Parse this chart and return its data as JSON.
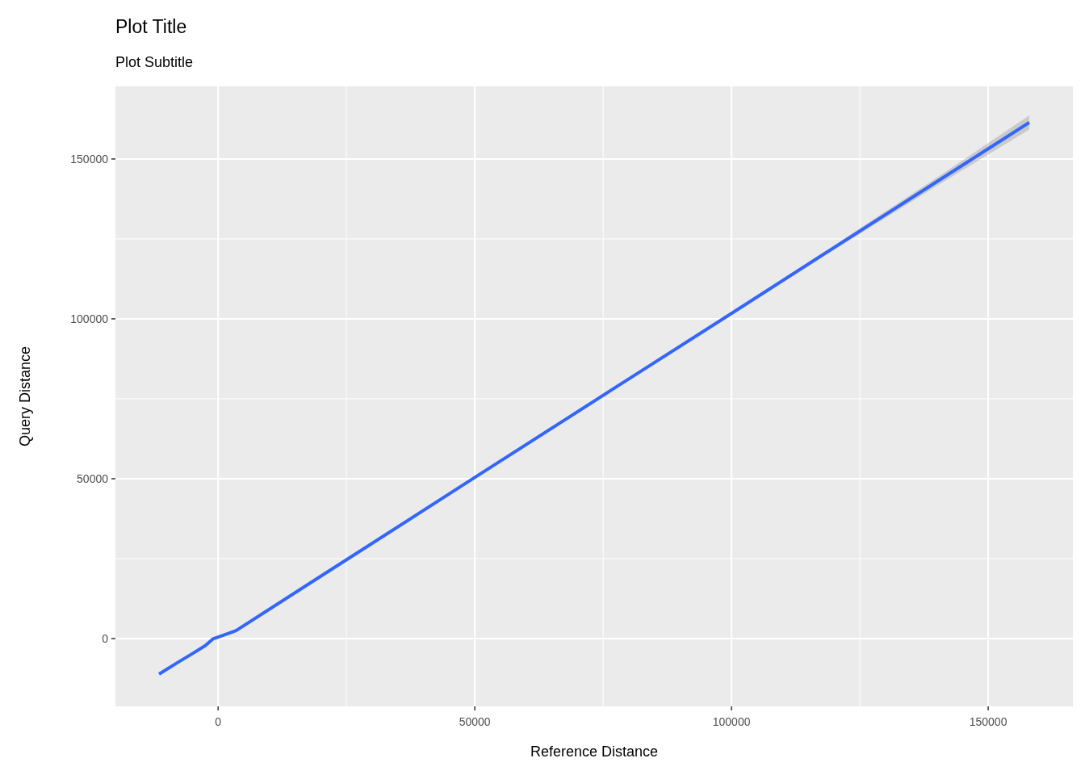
{
  "chart_data": {
    "type": "line",
    "title": "Plot Title",
    "subtitle": "Plot Subtitle",
    "xlabel": "Reference Distance",
    "ylabel": "Query Distance",
    "x": [
      -11500,
      -8000,
      -5000,
      -2500,
      -1000,
      800,
      3500,
      20000,
      50000,
      80000,
      100000,
      120000,
      140000,
      158000
    ],
    "series": [
      {
        "color": "#3366ff",
        "values": [
          -11100,
          -7600,
          -4700,
          -2200,
          -100,
          900,
          2500,
          19500,
          50400,
          81200,
          101700,
          122300,
          142900,
          161400
        ],
        "lower": [
          -11400,
          -7900,
          -5000,
          -2500,
          -400,
          600,
          2200,
          19200,
          50100,
          80900,
          101400,
          121600,
          141600,
          159200
        ],
        "upper": [
          -10800,
          -7300,
          -4400,
          -1900,
          200,
          1200,
          2800,
          19800,
          50700,
          81500,
          102000,
          123000,
          144200,
          163600
        ]
      }
    ],
    "xlim": [
      -20000,
      166500
    ],
    "ylim": [
      -21200,
      172700
    ],
    "xticks": [
      0,
      50000,
      100000,
      150000
    ],
    "yticks": [
      0,
      50000,
      100000,
      150000
    ],
    "grid": true
  }
}
